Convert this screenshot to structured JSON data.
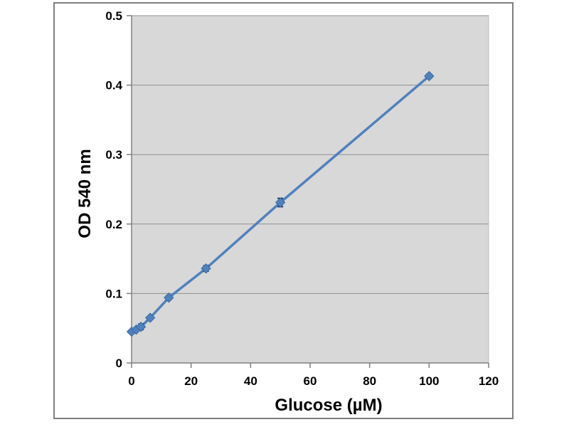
{
  "chart_data": {
    "type": "line",
    "title": "",
    "xlabel": "Glucose (µM)",
    "ylabel": "OD 540 nm",
    "x": [
      0,
      1.56,
      3.13,
      6.25,
      12.5,
      25,
      50,
      100
    ],
    "y": [
      0.045,
      0.048,
      0.052,
      0.065,
      0.094,
      0.136,
      0.231,
      0.413
    ],
    "yerr": [
      0.001,
      0.001,
      0.004,
      0.002,
      0.003,
      0.004,
      0.006,
      0.003
    ],
    "xlim": [
      0,
      120
    ],
    "ylim": [
      0,
      0.5
    ],
    "xticks": [
      0,
      20,
      40,
      60,
      80,
      100,
      120
    ],
    "yticks": [
      0,
      0.1,
      0.2,
      0.3,
      0.4,
      0.5
    ],
    "grid": "horizontal",
    "legend_position": "none",
    "marker": "diamond",
    "colors": {
      "line": "#4f81bd",
      "marker": "#4f81bd",
      "marker_edge": "#3a6aa3",
      "error_bar": "#1f3864",
      "plot_background": "#d8d8d8",
      "gridline": "#8f8f8f",
      "axis": "#808080",
      "text": "#000000",
      "frame_border": "#7f7f7f",
      "page_background": "#ffffff"
    }
  }
}
